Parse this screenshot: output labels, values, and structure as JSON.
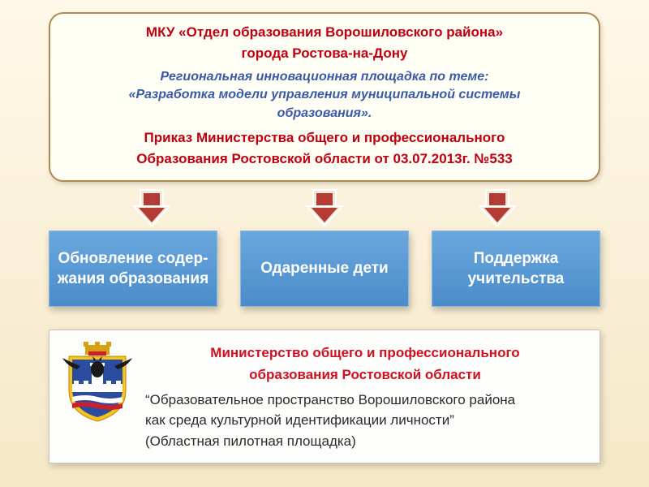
{
  "top": {
    "title1": "МКУ «Отдел образования Ворошиловского района»",
    "title2": "города  Ростова-на-Дону",
    "sub1": "Региональная инновационная площадка по теме:",
    "sub2": "«Разработка модели управления муниципальной системы",
    "sub3": "образования».",
    "order1": "Приказ Министерства общего и профессионального",
    "order2": "Образования Ростовской области  от  03.07.2013г. №533"
  },
  "arrow": {
    "fill": "#b43a34",
    "stroke": "#ffffff",
    "border_fill": "#f2e8d8"
  },
  "cards": [
    {
      "text": "Обновление содер-жания образования"
    },
    {
      "text": "Одаренные дети"
    },
    {
      "text": "Поддержка учительства"
    }
  ],
  "bottom": {
    "red1": "Министерство общего и профессионального",
    "red2": "образования Ростовской области",
    "line1": "“Образовательное пространство Ворошиловского района",
    "line2": "как среда культурной идентификации личности”",
    "line3": "(Областная пилотная площадка)"
  },
  "emblem": {
    "shield_yellow": "#f7c21a",
    "field_blue": "#2a4da0",
    "stripe_white": "#ffffff",
    "stripe_red": "#c9202e",
    "eagle_black": "#1a1a1a",
    "crown_gold": "#d9a012"
  }
}
